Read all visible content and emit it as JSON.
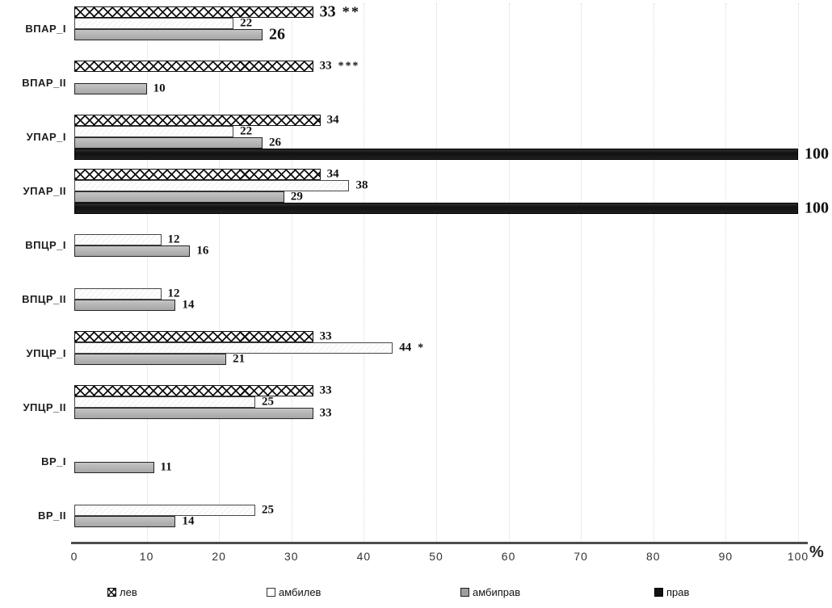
{
  "chart_data": {
    "type": "bar",
    "orientation": "horizontal",
    "title": "",
    "xlabel": "%",
    "ylabel": "",
    "xlim": [
      0,
      100
    ],
    "xticks": [
      0,
      10,
      20,
      30,
      40,
      50,
      60,
      70,
      80,
      90,
      100
    ],
    "xtick_suffix": "%",
    "grid": "vertical-dotted",
    "legend_position": "bottom",
    "categories": [
      "ВПАР_I",
      "ВПАР_II",
      "УПАР_I",
      "УПАР_II",
      "ВПЦР_I",
      "ВПЦР_II",
      "УПЦР_I",
      "УПЦР_II",
      "ВР_I",
      "ВР_II"
    ],
    "series": [
      {
        "name": "лев",
        "swatch": "crosshatch",
        "values": [
          33,
          33,
          34,
          34,
          null,
          null,
          33,
          33,
          null,
          null
        ],
        "annotations": [
          "**",
          "***",
          null,
          null,
          null,
          null,
          null,
          null,
          null,
          null
        ]
      },
      {
        "name": "амбилев",
        "swatch": "white",
        "values": [
          22,
          null,
          22,
          38,
          12,
          12,
          44,
          25,
          null,
          25
        ],
        "annotations": [
          null,
          null,
          null,
          null,
          null,
          null,
          "*",
          null,
          null,
          null
        ]
      },
      {
        "name": "амбиправ",
        "swatch": "gray",
        "values": [
          26,
          10,
          26,
          29,
          16,
          14,
          21,
          33,
          11,
          14
        ],
        "annotations": [
          null,
          null,
          null,
          null,
          null,
          null,
          null,
          null,
          null,
          null
        ]
      },
      {
        "name": "прав",
        "swatch": "black",
        "values": [
          null,
          null,
          100,
          100,
          null,
          null,
          null,
          null,
          null,
          null
        ],
        "annotations": [
          null,
          null,
          null,
          null,
          null,
          null,
          null,
          null,
          null,
          null
        ]
      }
    ],
    "emphasized_labels": [
      {
        "category_index": 0,
        "series_index": 0
      },
      {
        "category_index": 0,
        "series_index": 2
      },
      {
        "category_index": 2,
        "series_index": 3
      },
      {
        "category_index": 3,
        "series_index": 3
      }
    ]
  },
  "legend": {
    "items": [
      {
        "label": "лев",
        "swatch": "crosshatch"
      },
      {
        "label": "амбилев",
        "swatch": "white"
      },
      {
        "label": "амбиправ",
        "swatch": "gray"
      },
      {
        "label": "прав",
        "swatch": "black"
      }
    ]
  },
  "colors": {
    "bar_border": "#1a1a1a",
    "gray_fill": "#b2b2b2",
    "black_fill": "#1b1b1b",
    "axis_line": "#4d4d4d",
    "gridline": "#d9d9d9",
    "text": "#1a1a1a"
  }
}
